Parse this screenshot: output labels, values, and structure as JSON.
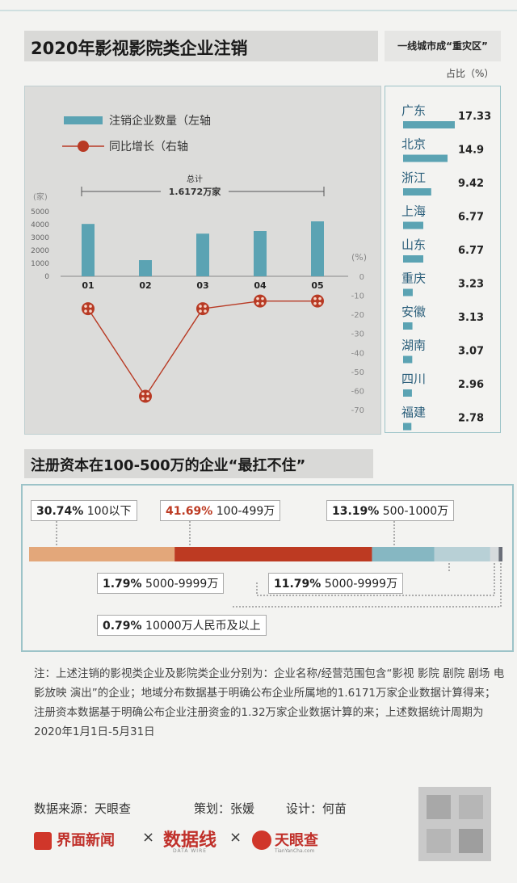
{
  "title": "2020年影视影院类企业注销",
  "tag": "一线城市成“重灾区”",
  "ratio_unit": "占比（%）",
  "chart_data": [
    {
      "type": "bar",
      "categories": [
        "01",
        "02",
        "03",
        "04",
        "05"
      ],
      "series": [
        {
          "name": "注销企业数量（左轴",
          "values": [
            4050,
            1250,
            3300,
            3500,
            4250
          ],
          "color": "#5ba3b3"
        },
        {
          "name": "同比增长（右轴",
          "values": [
            -17,
            -63,
            -17,
            -13,
            -13
          ],
          "color": "#b83a24",
          "type": "line"
        }
      ],
      "left_axis": {
        "unit": "(家)",
        "ticks": [
          "5000",
          "4000",
          "3000",
          "2000",
          "1000",
          "0"
        ],
        "ylim": [
          0,
          5000
        ]
      },
      "right_axis": {
        "unit": "(%)",
        "ticks": [
          "0",
          "-10",
          "-20",
          "-30",
          "-40",
          "-50",
          "-60",
          "-70"
        ],
        "ylim": [
          -70,
          0
        ]
      },
      "total_label": "总计",
      "total_value": "1.6172万家"
    },
    {
      "type": "bar",
      "title": "一线城市成“重灾区”",
      "unit": "占比（%）",
      "categories": [
        "广东",
        "北京",
        "浙江",
        "上海",
        "山东",
        "重庆",
        "安徽",
        "湖南",
        "四川",
        "福建"
      ],
      "values": [
        17.33,
        14.9,
        9.42,
        6.77,
        6.77,
        3.23,
        3.13,
        3.07,
        2.96,
        2.78
      ],
      "value_labels": [
        "17.33",
        "14.9",
        "9.42",
        "6.77",
        "6.77",
        "3.23",
        "3.13",
        "3.07",
        "2.96",
        "2.78"
      ],
      "color": "#5ba3b3"
    },
    {
      "type": "bar",
      "title": "注册资本在100-500万的企业“最扛不住”",
      "categories": [
        "100以下",
        "100-499万",
        "500-1000万",
        "5000-9999万",
        "5000-9999万",
        "10000万人民币及以上"
      ],
      "values": [
        30.74,
        41.69,
        13.19,
        11.79,
        1.79,
        0.79
      ],
      "value_labels": [
        "30.74%",
        "41.69%",
        "13.19%",
        "11.79%",
        "1.79%",
        "0.79%"
      ],
      "colors": [
        "#e3a77a",
        "#bd3a22",
        "#86b7c2",
        "#b8d0d6",
        "#d6dadc",
        "#6a6e78"
      ]
    }
  ],
  "note": "注：上述注销的影视类企业及影院类企业分别为：企业名称/经营范围包含“影视 影院 剧院 剧场 电影放映 演出”的企业；地域分布数据基于明确公布企业所属地的1.6171万家企业数据计算得来；注册资本数据基于明确公布企业注册资金的1.32万家企业数据计算的来；上述数据统计周期为2020年1月1日-5月31日",
  "credits": {
    "source": "数据来源：天眼查",
    "planner": "策划：张媛",
    "designer": "设计：何苗"
  },
  "brands": {
    "a": "界面新闻",
    "x1": "×",
    "b": "数据线",
    "b_sub": "DATA WIRE",
    "x2": "×",
    "c": "天眼查",
    "c_sub": "TianYanCha.com"
  }
}
